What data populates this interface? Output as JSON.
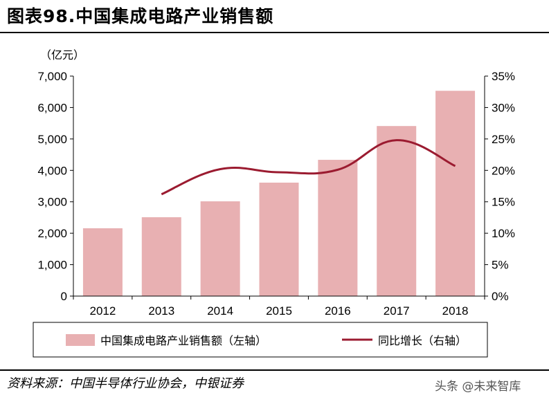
{
  "title": "图表98.中国集成电路产业销售额",
  "source": "资料来源：中国半导体行业协会，中银证券",
  "watermark": "头条 @未来智库",
  "chart_data": {
    "type": "bar",
    "categories": [
      "2012",
      "2013",
      "2014",
      "2015",
      "2016",
      "2017",
      "2018"
    ],
    "y_unit": "（亿元）",
    "ylim_left": [
      0,
      7000
    ],
    "ylim_right": [
      0,
      35
    ],
    "left_ticks": [
      "0",
      "1,000",
      "2,000",
      "3,000",
      "4,000",
      "5,000",
      "6,000",
      "7,000"
    ],
    "right_ticks": [
      "0%",
      "5%",
      "10%",
      "15%",
      "20%",
      "25%",
      "30%",
      "35%"
    ],
    "series": [
      {
        "name": "中国集成电路产业销售额（左轴）",
        "type": "bar",
        "axis": "left",
        "values": [
          2158,
          2509,
          3015,
          3610,
          4336,
          5411,
          6532
        ],
        "color": "#e8b0b2"
      },
      {
        "name": "同比增长（右轴）",
        "type": "line",
        "axis": "right",
        "values": [
          null,
          16.2,
          20.2,
          19.7,
          20.1,
          24.8,
          20.7
        ],
        "color": "#9b1b30"
      }
    ],
    "grid": false,
    "legend_position": "bottom"
  }
}
